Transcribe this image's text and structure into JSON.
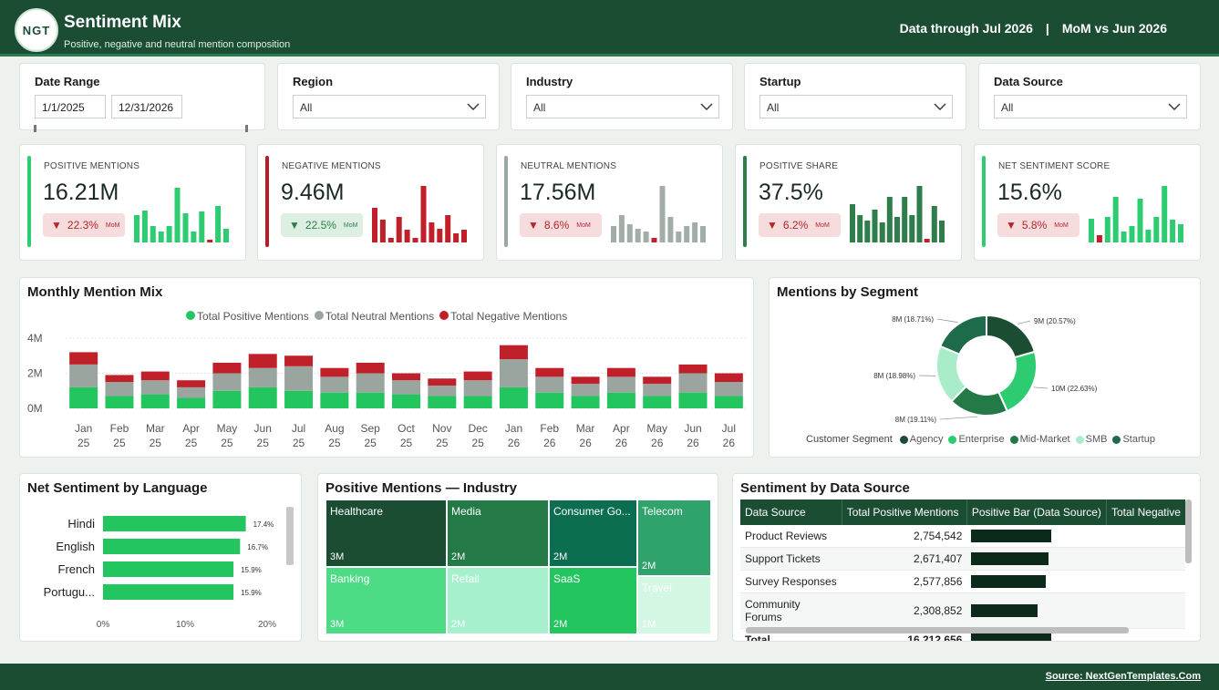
{
  "header": {
    "logo_text": "NGT",
    "title": "Sentiment Mix",
    "subtitle": "Positive, negative and neutral mention composition",
    "data_through": "Data through Jul 2026",
    "separator": "|",
    "comparison": "MoM vs Jun 2026"
  },
  "filters": {
    "date_range": {
      "label": "Date Range",
      "start": "1/1/2025",
      "end": "12/31/2026"
    },
    "region": {
      "label": "Region",
      "value": "All"
    },
    "industry": {
      "label": "Industry",
      "value": "All"
    },
    "startup": {
      "label": "Startup",
      "value": "All"
    },
    "data_source": {
      "label": "Data Source",
      "value": "All"
    }
  },
  "kpis": [
    {
      "label": "POSITIVE MENTIONS",
      "value": "16.21M",
      "change": "22.3%",
      "direction": "down",
      "mom": "MoM",
      "badge": "red",
      "accent": "#2ecc71",
      "bar_color": "#2ecc71",
      "spark": [
        30,
        35,
        18,
        12,
        18,
        60,
        32,
        12,
        34,
        3,
        40,
        15
      ]
    },
    {
      "label": "NEGATIVE MENTIONS",
      "value": "9.46M",
      "change": "22.5%",
      "direction": "down",
      "mom": "MoM",
      "badge": "green",
      "accent": "#b81c24",
      "bar_color": "#c0202a",
      "spark": [
        38,
        25,
        5,
        28,
        14,
        5,
        62,
        22,
        15,
        30,
        10,
        14
      ]
    },
    {
      "label": "NEUTRAL MENTIONS",
      "value": "17.56M",
      "change": "8.6%",
      "direction": "down",
      "mom": "MoM",
      "badge": "red",
      "accent": "#9aa8a0",
      "bar_color": "#a3ada8",
      "spark": [
        18,
        30,
        20,
        15,
        12,
        5,
        62,
        28,
        12,
        18,
        22,
        18
      ]
    },
    {
      "label": "POSITIVE SHARE",
      "value": "37.5%",
      "change": "6.2%",
      "direction": "down",
      "mom": "MoM",
      "badge": "red",
      "accent": "#2e7d4a",
      "bar_color": "#2e7d4a",
      "spark": [
        42,
        30,
        24,
        36,
        22,
        50,
        28,
        50,
        30,
        62,
        4,
        40,
        24
      ]
    },
    {
      "label": "NET SENTIMENT SCORE",
      "value": "15.6%",
      "change": "5.8%",
      "direction": "down",
      "mom": "MoM",
      "badge": "red",
      "accent": "#2ecc71",
      "bar_color": "#2ecc71",
      "spark": [
        26,
        8,
        28,
        50,
        12,
        18,
        48,
        14,
        28,
        62,
        25,
        20
      ]
    }
  ],
  "monthly_mix": {
    "title": "Monthly Mention Mix",
    "legend": [
      "Total Positive Mentions",
      "Total Neutral Mentions",
      "Total Negative Mentions"
    ],
    "y_ticks": [
      "4M",
      "2M",
      "0M"
    ]
  },
  "segment": {
    "title": "Mentions by Segment",
    "legend_title": "Customer Segment",
    "labels": [
      {
        "text": "9M (20.57%)"
      },
      {
        "text": "10M (22.63%)"
      },
      {
        "text": "8M (19.11%)"
      },
      {
        "text": "8M (18.98%)"
      },
      {
        "text": "8M (18.71%)"
      }
    ]
  },
  "language": {
    "title": "Net Sentiment by Language",
    "x_ticks": [
      "0%",
      "10%",
      "20%"
    ]
  },
  "industry_tm": {
    "title": "Positive Mentions — Industry",
    "tiles": [
      {
        "name": "Healthcare",
        "value": "3M",
        "color": "#1b4d33"
      },
      {
        "name": "Media",
        "value": "2M",
        "color": "#237a47"
      },
      {
        "name": "Consumer Go...",
        "value": "2M",
        "color": "#0c6e50"
      },
      {
        "name": "Telecom",
        "value": "2M",
        "color": "#2fa36b"
      },
      {
        "name": "Banking",
        "value": "3M",
        "color": "#4ddc85"
      },
      {
        "name": "Retail",
        "value": "2M",
        "color": "#a7f0cd"
      },
      {
        "name": "SaaS",
        "value": "2M",
        "color": "#22c55e"
      },
      {
        "name": "Travel",
        "value": "1M",
        "color": "#d2f7e3"
      }
    ]
  },
  "source_table": {
    "title": "Sentiment by Data Source",
    "headers": [
      "Data Source",
      "Total Positive Mentions",
      "Positive Bar (Data Source)",
      "Total Negative"
    ],
    "rows": [
      {
        "source": "Product Reviews",
        "positive": "2,754,542",
        "bar": 1.0
      },
      {
        "source": "Support Tickets",
        "positive": "2,671,407",
        "bar": 0.97
      },
      {
        "source": "Survey Responses",
        "positive": "2,577,856",
        "bar": 0.93
      },
      {
        "source": "Community Forums",
        "positive": "2,308,852",
        "bar": 0.83
      }
    ],
    "total": {
      "label": "Total",
      "positive": "16,212,656"
    }
  },
  "footer": {
    "source": "Source: NextGenTemplates.Com"
  },
  "chart_data": [
    {
      "type": "bar",
      "title": "Monthly Mention Mix",
      "stacked": true,
      "categories": [
        "Jan 25",
        "Feb 25",
        "Mar 25",
        "Apr 25",
        "May 25",
        "Jun 25",
        "Jul 25",
        "Aug 25",
        "Sep 25",
        "Oct 25",
        "Nov 25",
        "Dec 25",
        "Jan 26",
        "Feb 26",
        "Mar 26",
        "Apr 26",
        "May 26",
        "Jun 26",
        "Jul 26"
      ],
      "series": [
        {
          "name": "Total Positive Mentions",
          "color": "#22c55e",
          "values": [
            1.2,
            0.7,
            0.8,
            0.6,
            1.0,
            1.2,
            1.0,
            0.9,
            0.9,
            0.8,
            0.7,
            0.7,
            1.2,
            0.9,
            0.7,
            0.9,
            0.7,
            0.9,
            0.7
          ]
        },
        {
          "name": "Total Neutral Mentions",
          "color": "#9aa59f",
          "values": [
            1.3,
            0.8,
            0.8,
            0.6,
            1.0,
            1.1,
            1.4,
            0.9,
            1.1,
            0.8,
            0.6,
            0.9,
            1.6,
            0.9,
            0.7,
            0.9,
            0.7,
            1.1,
            0.8
          ]
        },
        {
          "name": "Total Negative Mentions",
          "color": "#c0202a",
          "values": [
            0.7,
            0.4,
            0.5,
            0.4,
            0.6,
            0.8,
            0.6,
            0.5,
            0.6,
            0.4,
            0.4,
            0.5,
            0.8,
            0.5,
            0.4,
            0.5,
            0.4,
            0.5,
            0.5
          ]
        }
      ],
      "ylim": [
        0,
        4
      ],
      "y_unit": "M",
      "legend_position": "top-center",
      "grid": true
    },
    {
      "type": "pie",
      "title": "Mentions by Segment",
      "donut": true,
      "slices": [
        {
          "name": "Agency",
          "value": 20.57,
          "label": "9M (20.57%)",
          "color": "#1b4d33"
        },
        {
          "name": "Enterprise",
          "value": 22.63,
          "label": "10M (22.63%)",
          "color": "#2ecc71"
        },
        {
          "name": "Mid-Market",
          "value": 19.11,
          "label": "8M (19.11%)",
          "color": "#237a47"
        },
        {
          "name": "SMB",
          "value": 18.98,
          "label": "8M (18.98%)",
          "color": "#a8ecca"
        },
        {
          "name": "Startup",
          "value": 18.71,
          "label": "8M (18.71%)",
          "color": "#1d6b4a"
        }
      ],
      "legend_position": "bottom"
    },
    {
      "type": "bar",
      "orientation": "horizontal",
      "title": "Net Sentiment by Language",
      "categories": [
        "Hindi",
        "English",
        "French",
        "Portugu..."
      ],
      "values": [
        17.4,
        16.7,
        15.9,
        15.9
      ],
      "value_labels": [
        "17.4%",
        "16.7%",
        "15.9%",
        "15.9%"
      ],
      "xlim": [
        0,
        20
      ],
      "color": "#22c55e"
    }
  ]
}
